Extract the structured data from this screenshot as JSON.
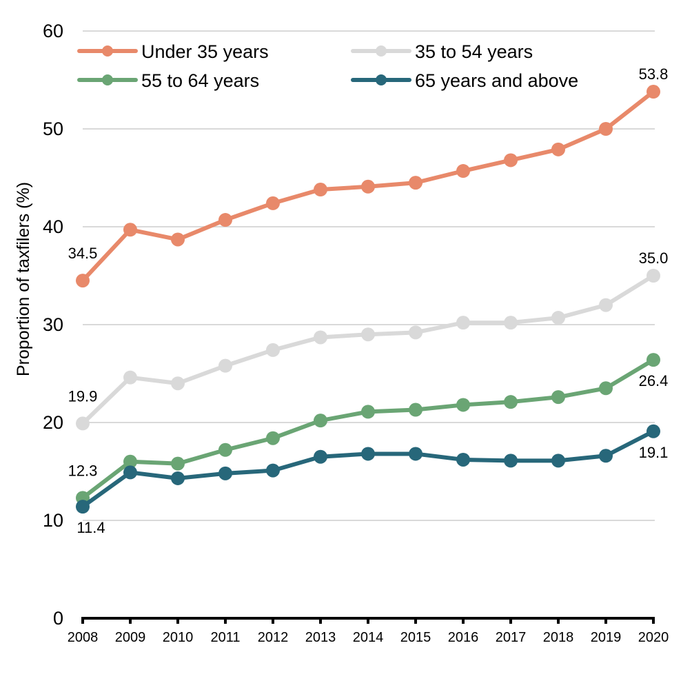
{
  "chart_data": {
    "type": "line",
    "title": "",
    "xlabel": "",
    "ylabel": "Proportion of taxfilers (%)",
    "ylim": [
      0,
      60
    ],
    "yticks": [
      0,
      10,
      20,
      30,
      40,
      50,
      60
    ],
    "ytick_labels": [
      "0",
      "10",
      "20",
      "30",
      "40",
      "50",
      "60"
    ],
    "grid": true,
    "legend_position": "top",
    "x": [
      "2008",
      "2009",
      "2010",
      "2011",
      "2012",
      "2013",
      "2014",
      "2015",
      "2016",
      "2017",
      "2018",
      "2019",
      "2020"
    ],
    "series": [
      {
        "name": "Under 35 years",
        "color": "#E8896A",
        "values": [
          34.5,
          39.7,
          38.7,
          40.7,
          42.4,
          43.8,
          44.1,
          44.5,
          45.7,
          46.8,
          47.9,
          50.0,
          53.8
        ],
        "labels": [
          {
            "index": 0,
            "text": "34.5",
            "pos": "above-left"
          },
          {
            "index": 12,
            "text": "53.8",
            "pos": "above"
          }
        ]
      },
      {
        "name": "35 to 54 years",
        "color": "#D9D9D9",
        "values": [
          19.9,
          24.6,
          24.0,
          25.8,
          27.4,
          28.7,
          29.0,
          29.2,
          30.2,
          30.2,
          30.7,
          32.0,
          35.0
        ],
        "labels": [
          {
            "index": 0,
            "text": "19.9",
            "pos": "above-left"
          },
          {
            "index": 12,
            "text": "35.0",
            "pos": "above"
          }
        ]
      },
      {
        "name": "55 to 64 years",
        "color": "#6AA574",
        "values": [
          12.3,
          16.0,
          15.8,
          17.2,
          18.4,
          20.2,
          21.1,
          21.3,
          21.8,
          22.1,
          22.6,
          23.5,
          26.4
        ],
        "labels": [
          {
            "index": 0,
            "text": "12.3",
            "pos": "above-left"
          },
          {
            "index": 12,
            "text": "26.4",
            "pos": "below"
          }
        ]
      },
      {
        "name": "65 years and above",
        "color": "#27677A",
        "values": [
          11.4,
          14.9,
          14.3,
          14.8,
          15.1,
          16.5,
          16.8,
          16.8,
          16.2,
          16.1,
          16.1,
          16.6,
          19.1
        ],
        "labels": [
          {
            "index": 0,
            "text": "11.4",
            "pos": "below"
          },
          {
            "index": 12,
            "text": "19.1",
            "pos": "below"
          }
        ]
      }
    ]
  }
}
